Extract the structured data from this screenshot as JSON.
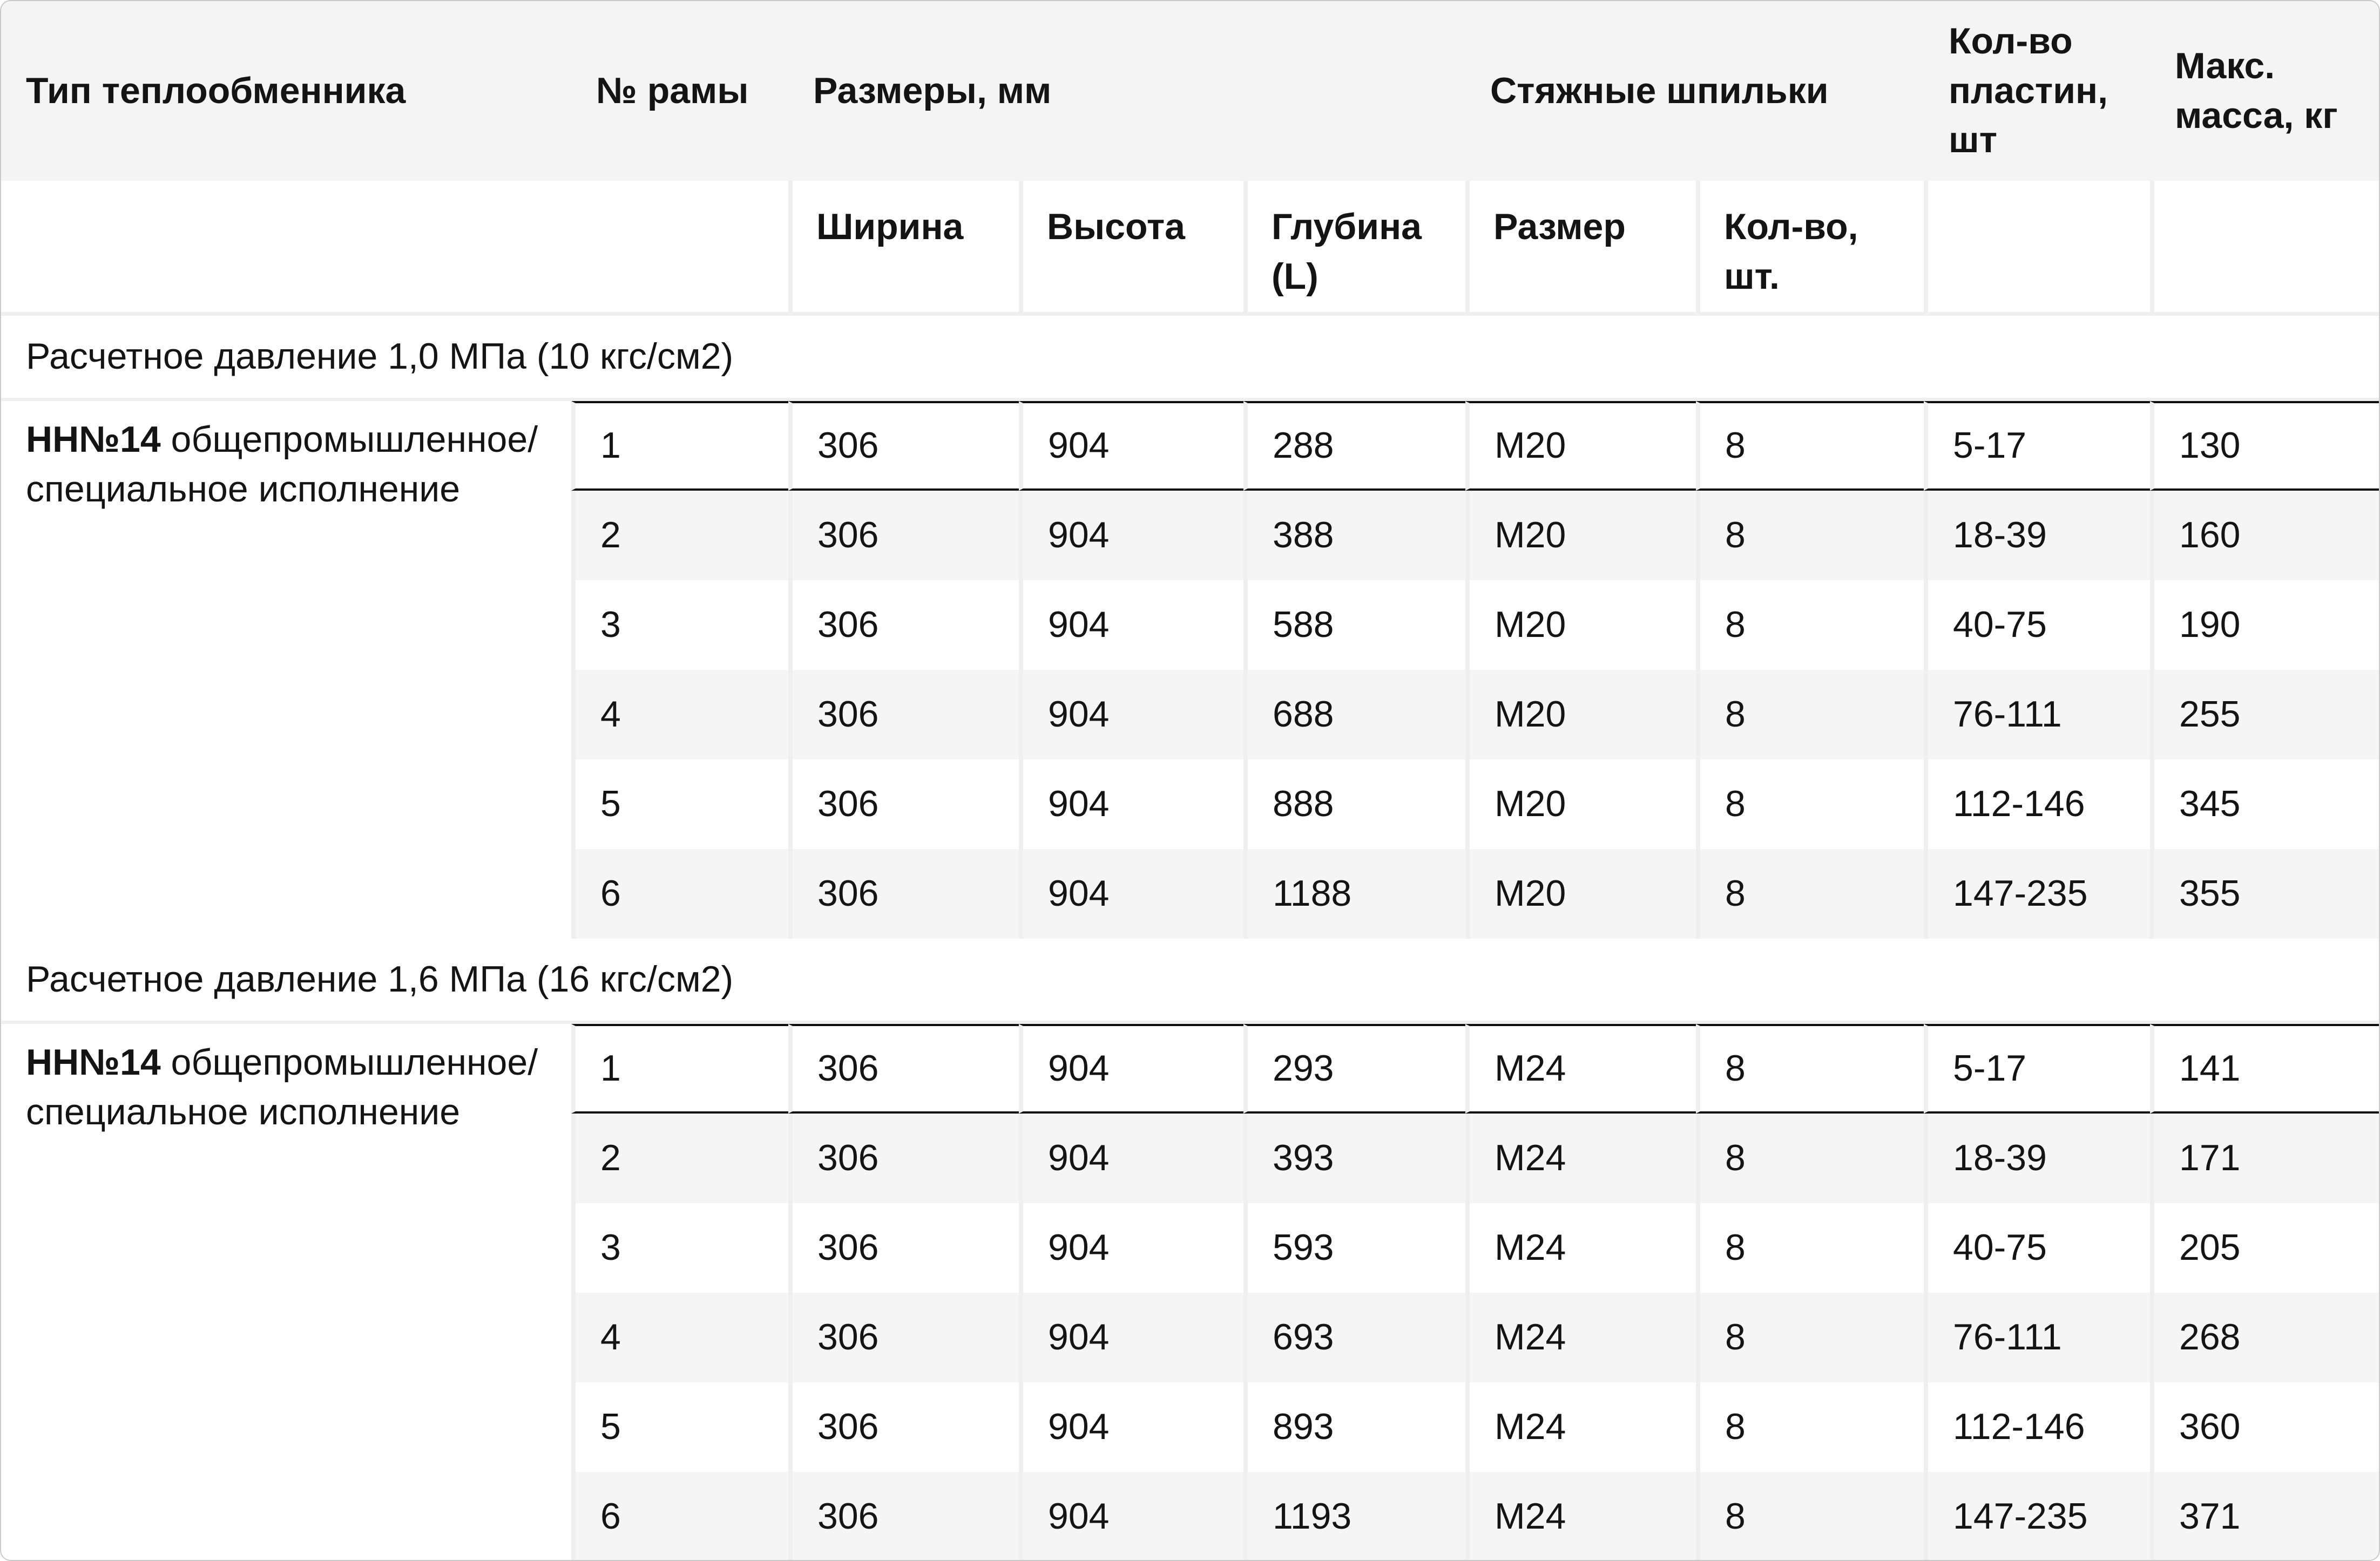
{
  "table": {
    "header_groups": [
      {
        "label": "Тип теплообменника"
      },
      {
        "label": "№ рамы"
      },
      {
        "label": "Размеры, мм"
      },
      {
        "label": "Стяжные шпильки"
      },
      {
        "label": "Кол-во пластин, шт"
      },
      {
        "label": "Макс. масса, кг"
      }
    ],
    "subheaders": {
      "width": "Ширина",
      "height": "Высота",
      "depth": "Глубина (L)",
      "size": "Размер",
      "qty": "Кол-во, шт."
    },
    "sections": [
      {
        "title": "Расчетное давление 1,0 МПа (10 кгс/см2)",
        "type_bold": "НН№14",
        "type_rest": " общепромышленное/специальное исполнение",
        "rows": [
          [
            "1",
            "306",
            "904",
            "288",
            "М20",
            "8",
            "5-17",
            "130"
          ],
          [
            "2",
            "306",
            "904",
            "388",
            "М20",
            "8",
            "18-39",
            "160"
          ],
          [
            "3",
            "306",
            "904",
            "588",
            "М20",
            "8",
            "40-75",
            "190"
          ],
          [
            "4",
            "306",
            "904",
            "688",
            "М20",
            "8",
            "76-111",
            "255"
          ],
          [
            "5",
            "306",
            "904",
            "888",
            "М20",
            "8",
            "112-146",
            "345"
          ],
          [
            "6",
            "306",
            "904",
            "1188",
            "М20",
            "8",
            "147-235",
            "355"
          ]
        ]
      },
      {
        "title": "Расчетное давление 1,6 МПа (16 кгс/см2)",
        "type_bold": "НН№14",
        "type_rest": " общепромышленное/специальное исполнение",
        "rows": [
          [
            "1",
            "306",
            "904",
            "293",
            "М24",
            "8",
            "5-17",
            "141"
          ],
          [
            "2",
            "306",
            "904",
            "393",
            "М24",
            "8",
            "18-39",
            "171"
          ],
          [
            "3",
            "306",
            "904",
            "593",
            "М24",
            "8",
            "40-75",
            "205"
          ],
          [
            "4",
            "306",
            "904",
            "693",
            "М24",
            "8",
            "76-111",
            "268"
          ],
          [
            "5",
            "306",
            "904",
            "893",
            "М24",
            "8",
            "112-146",
            "360"
          ],
          [
            "6",
            "306",
            "904",
            "1193",
            "М24",
            "8",
            "147-235",
            "371"
          ]
        ]
      }
    ]
  },
  "colors": {
    "highlight_border": "#0d0d0d",
    "header_bg": "#f4f4f4",
    "stripe_row_bg": "#f5f5f5",
    "cell_gap": "#efefef",
    "card_border": "#c9c9c9",
    "text": "#141414"
  }
}
